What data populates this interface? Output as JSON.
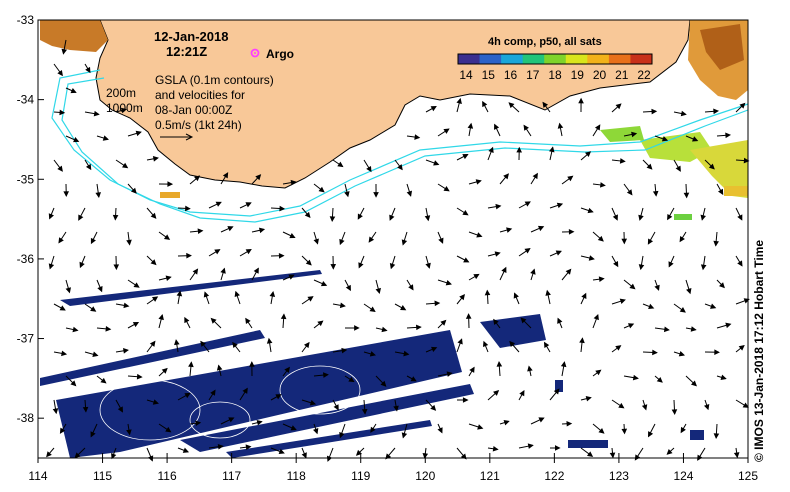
{
  "map": {
    "date": "12-Jan-2018",
    "time": "12:21Z",
    "argo_label": "Argo",
    "legend_text": [
      "GSLA (0.1m contours)",
      "and velocities for",
      "08-Jan 00:00Z",
      "0.5m/s (1kt 24h)"
    ],
    "isobath_labels": [
      "200m",
      "1000m"
    ],
    "colorbar": {
      "title": "4h comp, p50, all sats",
      "ticks": [
        "14",
        "15",
        "16",
        "17",
        "18",
        "19",
        "20",
        "21",
        "22"
      ],
      "colors": [
        "#3b2f8f",
        "#2b63c8",
        "#1aa6d9",
        "#22c47a",
        "#7fd32a",
        "#d9e51c",
        "#f2b21a",
        "#e8701a",
        "#c8301a"
      ]
    },
    "credit": "© IMOS 13-Jan-2018 17:12 Hobart Time",
    "x_axis": {
      "min": 114,
      "max": 125,
      "ticks": [
        "114",
        "115",
        "116",
        "117",
        "118",
        "119",
        "120",
        "121",
        "122",
        "123",
        "124",
        "125"
      ]
    },
    "y_axis": {
      "min": -38.5,
      "max": -33,
      "ticks": [
        "-33",
        "-34",
        "-35",
        "-36",
        "-37",
        "-38"
      ]
    },
    "colors": {
      "land": "#f8c898",
      "ocean": "#ffffff",
      "isobath": "#30d8e8",
      "sst_cold": "#102878",
      "sst_warm": "#c86818",
      "sst_green": "#a8e02a",
      "argo": "#ff40ff"
    }
  }
}
